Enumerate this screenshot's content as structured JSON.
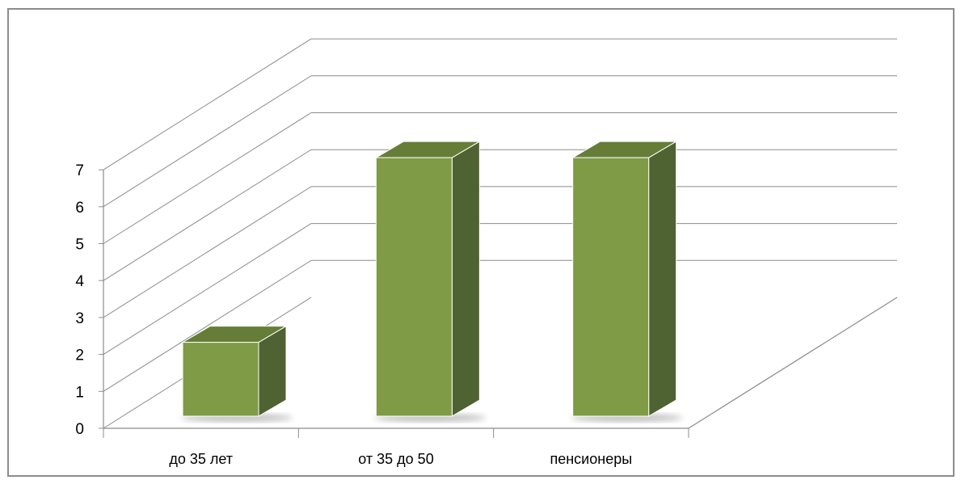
{
  "chart_data": {
    "type": "bar",
    "title": "",
    "xlabel": "",
    "ylabel": "",
    "categories": [
      "до 35 лет",
      "от 35  до 50",
      "пенсионеры"
    ],
    "values": [
      2,
      7,
      7
    ],
    "ylim": [
      0,
      7
    ],
    "y_ticks": [
      "0",
      "1",
      "2",
      "3",
      "4",
      "5",
      "6",
      "7"
    ],
    "grid": true,
    "legend": "none",
    "three_d": true,
    "colors": {
      "bar_front": "#7f9b46",
      "bar_side": "#4f6231",
      "bar_top": "#667d38",
      "gridline": "#8c8c8c",
      "axis": "#8c8c8c"
    }
  }
}
